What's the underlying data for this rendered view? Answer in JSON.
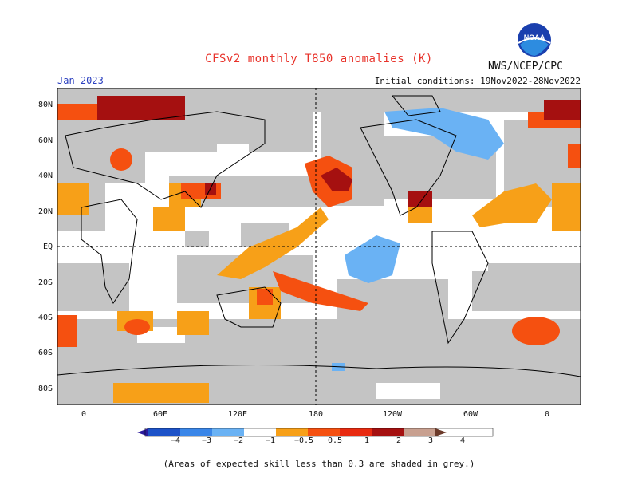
{
  "title": "CFSv2 monthly T850 anomalies (K)",
  "agency": "NWS/NCEP/CPC",
  "logo_text": "NOAA",
  "period": "Jan 2023",
  "initial_conditions": "Initial conditions: 19Nov2022-28Nov2022",
  "lat_labels": [
    "80N",
    "60N",
    "40N",
    "20N",
    "EQ",
    "20S",
    "40S",
    "60S",
    "80S"
  ],
  "lon_labels": [
    "0",
    "60E",
    "120E",
    "180",
    "120W",
    "60W",
    "0"
  ],
  "colorbar": {
    "labels": [
      "−4",
      "−3",
      "−2",
      "−1",
      "−0.5",
      "0.5",
      "1",
      "2",
      "3",
      "4"
    ],
    "colors": [
      "#2a1a9c",
      "#1d52c8",
      "#3a86e8",
      "#6ab2f4",
      "#ffffff",
      "#f7a018",
      "#f55010",
      "#e82a10",
      "#a51010",
      "#c8a090",
      "#6b3a2a"
    ]
  },
  "note": "(Areas of expected skill less than 0.3 are shaded in grey.)",
  "colors": {
    "grey": "#c4c4c4",
    "orange": "#f7a018",
    "red": "#f55010",
    "darkred": "#a51010",
    "lightblue": "#6ab2f4",
    "blue": "#3a86e8"
  }
}
